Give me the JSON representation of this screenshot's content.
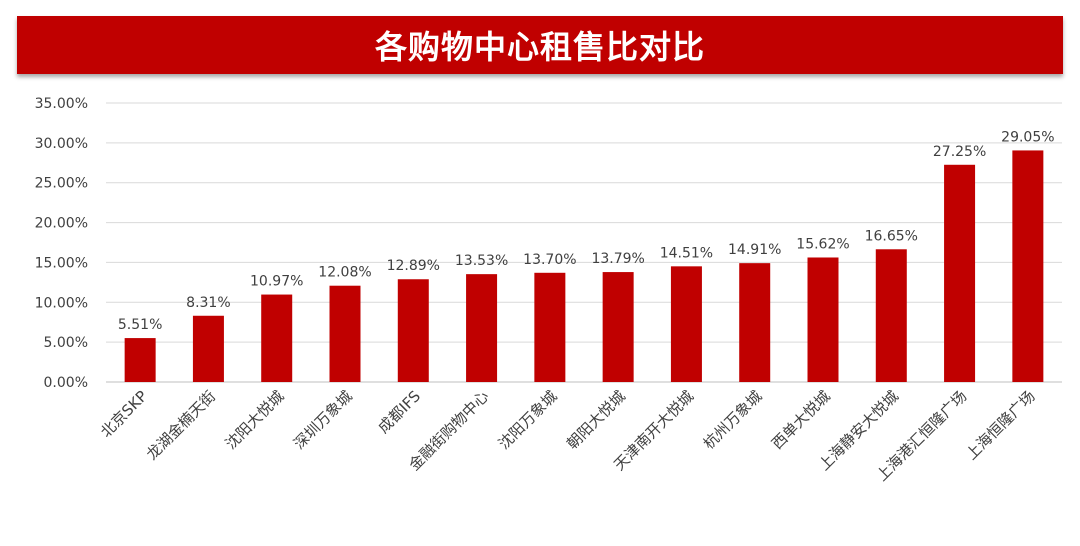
{
  "title": "各购物中心租售比对比",
  "colors": {
    "banner": "#c00000",
    "bar": "#c00000",
    "gridline": "#d9d9d9",
    "axis": "#bfbfbf",
    "text": "#404040"
  },
  "chart_data": {
    "type": "bar",
    "title": "各购物中心租售比对比",
    "xlabel": "",
    "ylabel": "",
    "ylim": [
      0,
      35
    ],
    "y_ticks": [
      "0.00%",
      "5.00%",
      "10.00%",
      "15.00%",
      "20.00%",
      "25.00%",
      "30.00%",
      "35.00%"
    ],
    "grid": true,
    "legend": "none",
    "categories": [
      "北京SKP",
      "龙湖金楠天街",
      "沈阳大悦城",
      "深圳万象城",
      "成都IFS",
      "金融街购物中心",
      "沈阳万象城",
      "朝阳大悦城",
      "天津南开大悦城",
      "杭州万象城",
      "西单大悦城",
      "上海静安大悦城",
      "上海港汇恒隆广场",
      "上海恒隆广场"
    ],
    "values": [
      5.51,
      8.31,
      10.97,
      12.08,
      12.89,
      13.53,
      13.7,
      13.79,
      14.51,
      14.91,
      15.62,
      16.65,
      27.25,
      29.05
    ],
    "data_labels": [
      "5.51%",
      "8.31%",
      "10.97%",
      "12.08%",
      "12.89%",
      "13.53%",
      "13.70%",
      "13.79%",
      "14.51%",
      "14.91%",
      "15.62%",
      "16.65%",
      "27.25%",
      "29.05%"
    ]
  }
}
